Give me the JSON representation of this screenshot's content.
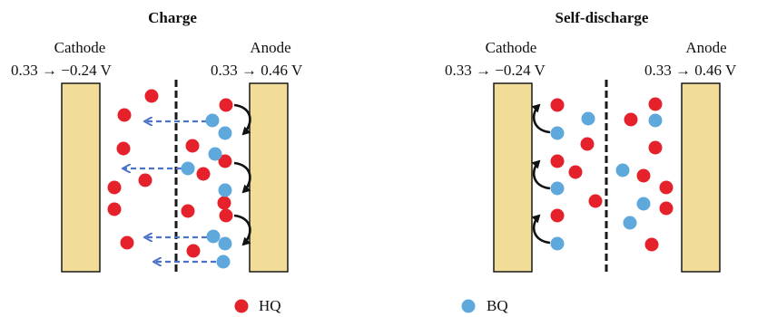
{
  "panels": {
    "charge": {
      "title": "Charge",
      "cathode_label": "Cathode",
      "cathode_voltage": "0.33 → −0.24 V",
      "anode_label": "Anode",
      "anode_voltage": "0.33 → 0.46 V"
    },
    "self_discharge": {
      "title": "Self-discharge",
      "cathode_label": "Cathode",
      "cathode_voltage": "0.33 → −0.24 V",
      "anode_label": "Anode",
      "anode_voltage": "0.33 → 0.46 V"
    }
  },
  "legend": {
    "hq_label": "HQ",
    "bq_label": "BQ",
    "hq_color": "#e5222b",
    "bq_color": "#5fa8dc"
  }
}
